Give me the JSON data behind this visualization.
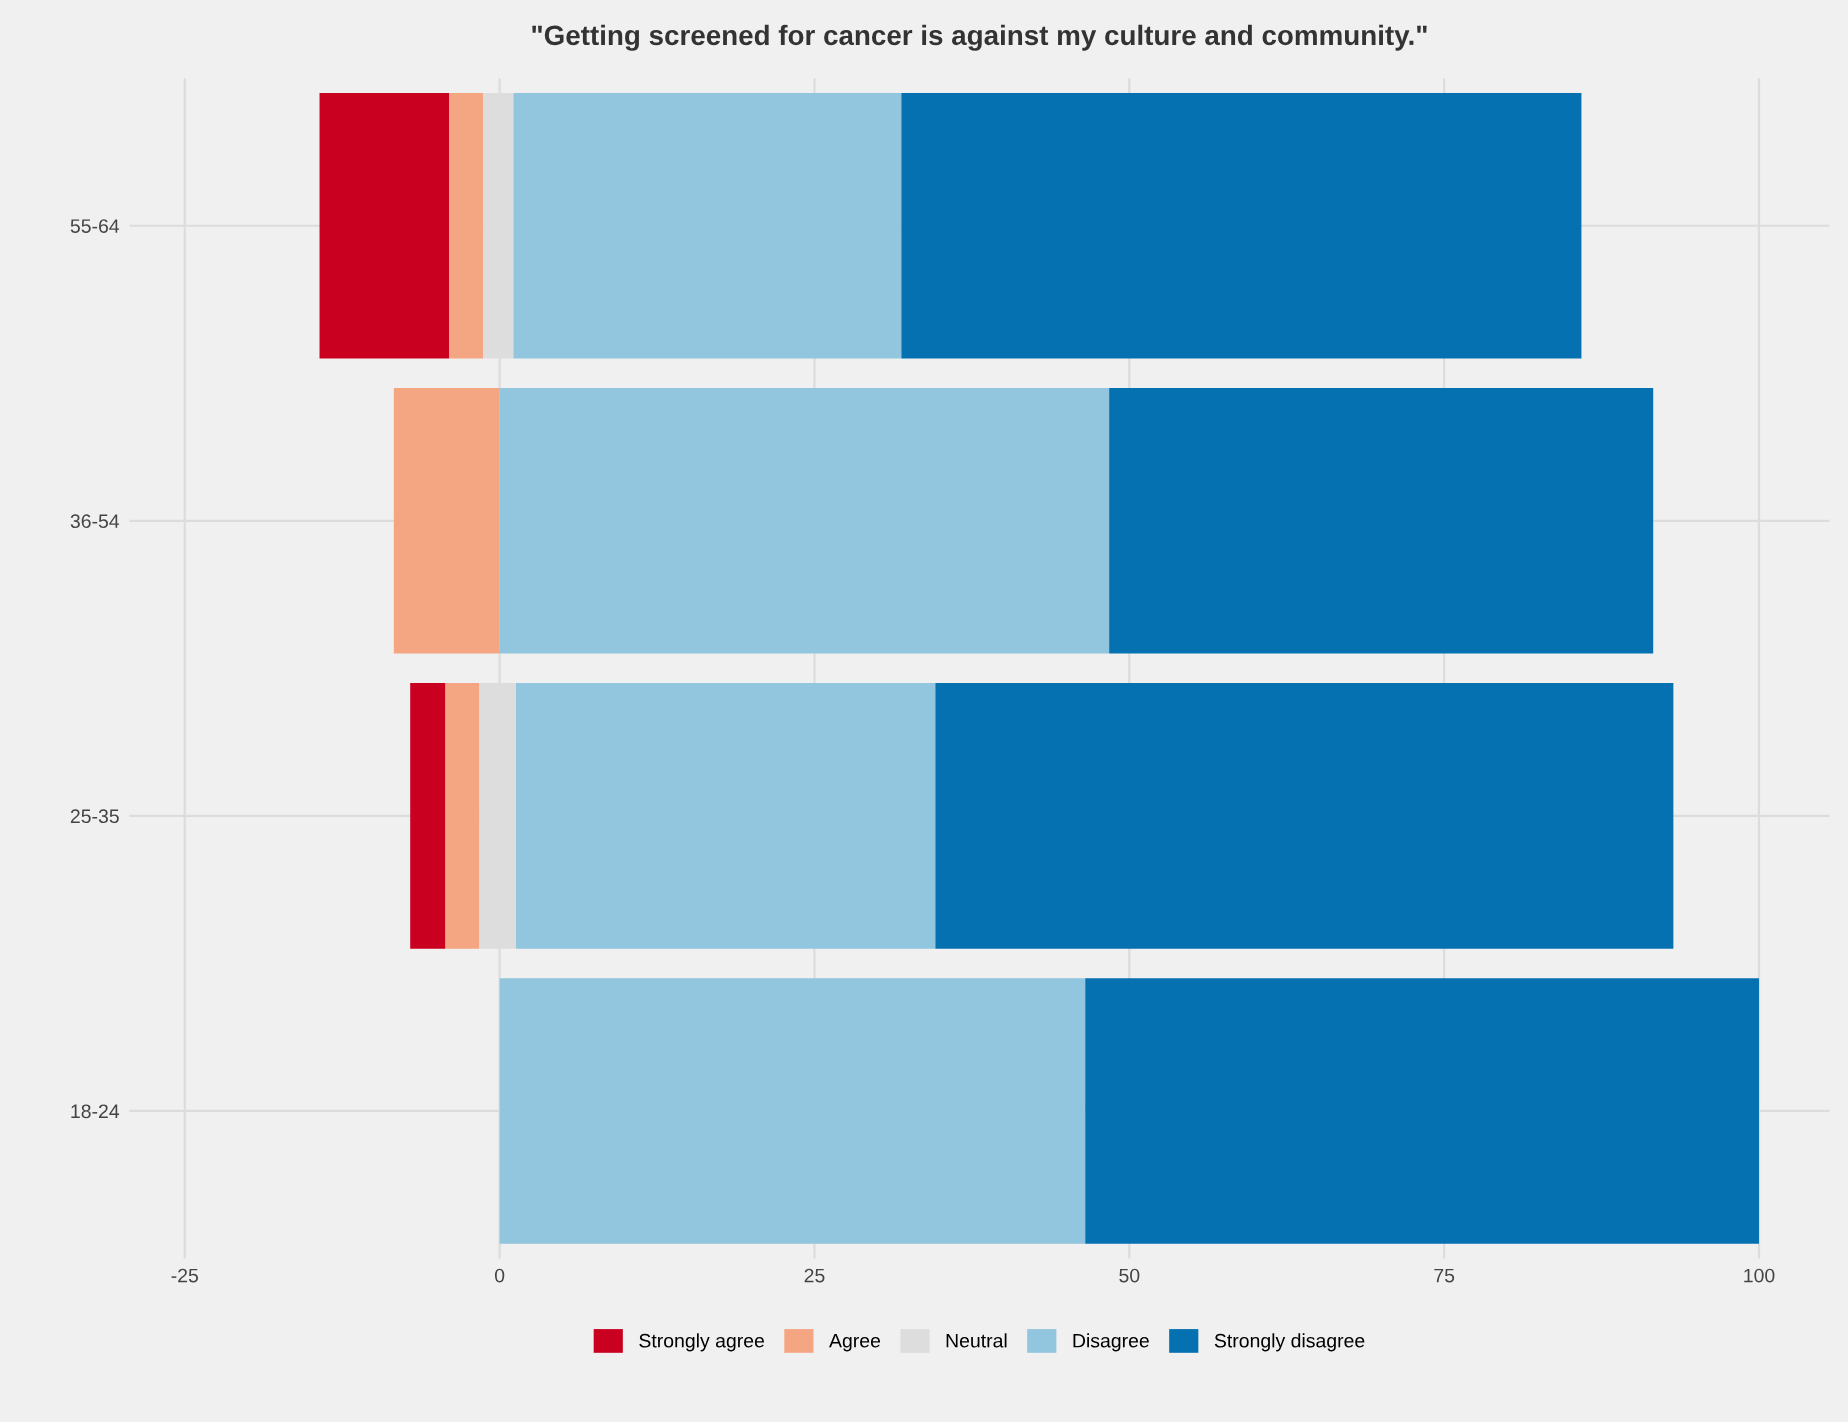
{
  "chart_data": {
    "type": "bar",
    "orientation": "horizontal",
    "title": "\"Getting screened for cancer is against my culture and community.\"",
    "categories": [
      "55-64",
      "36-54",
      "25-35",
      "18-24"
    ],
    "series": [
      {
        "name": "Strongly agree",
        "color": "#ca0020",
        "base": [
          -14.3,
          null,
          -7.1,
          null
        ],
        "values": [
          10.3,
          null,
          2.8,
          null
        ]
      },
      {
        "name": "Agree",
        "color": "#f4a582",
        "base": [
          -4.0,
          -8.4,
          -4.3,
          null
        ],
        "values": [
          2.7,
          8.4,
          2.7,
          null
        ]
      },
      {
        "name": "Neutral",
        "color": "#dddddd",
        "base": [
          -1.3,
          null,
          -1.6,
          null
        ],
        "values": [
          2.4,
          null,
          2.9,
          null
        ]
      },
      {
        "name": "Disagree",
        "color": "#92c5de",
        "base": [
          1.1,
          0,
          1.3,
          0
        ],
        "values": [
          30.8,
          48.4,
          33.3,
          46.5
        ]
      },
      {
        "name": "Strongly disagree",
        "color": "#0571b0",
        "base": [
          31.9,
          48.4,
          34.6,
          46.5
        ],
        "values": [
          54.0,
          43.2,
          58.6,
          53.5
        ]
      }
    ],
    "xlim": [
      -29.4,
      105.6
    ],
    "xticks": [
      -25,
      0,
      25,
      50,
      75,
      100
    ],
    "grid": true,
    "legend": "bottom"
  }
}
